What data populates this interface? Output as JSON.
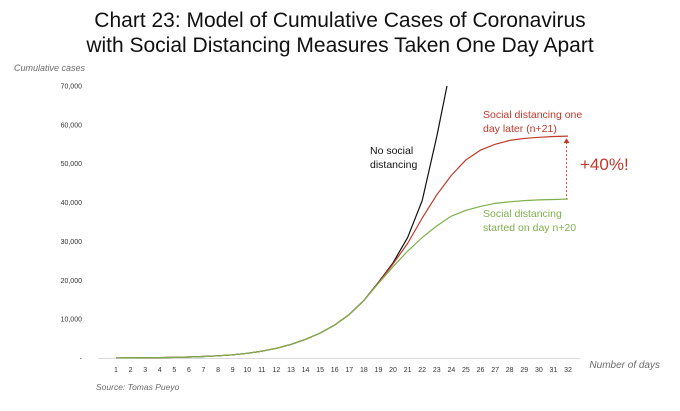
{
  "chart_data": {
    "type": "line",
    "title_line1": "Chart 23: Model of Cumulative Cases of Coronavirus",
    "title_line2": "with Social Distancing Measures Taken One Day Apart",
    "ylabel": "Cumulative cases",
    "xlabel": "Number of days",
    "source": "Source: Tomas Pueyo",
    "x": [
      1,
      2,
      3,
      4,
      5,
      6,
      7,
      8,
      9,
      10,
      11,
      12,
      13,
      14,
      15,
      16,
      17,
      18,
      19,
      20,
      21,
      22,
      23,
      24,
      25,
      26,
      27,
      28,
      29,
      30,
      31,
      32
    ],
    "xlim": [
      1,
      32
    ],
    "ylim": [
      0,
      70000
    ],
    "yticks": [
      0,
      10000,
      20000,
      30000,
      40000,
      50000,
      60000,
      70000
    ],
    "ytick_labels": [
      "-",
      "10,000",
      "20,000",
      "30,000",
      "40,000",
      "50,000",
      "60,000",
      "70,000"
    ],
    "grid": false,
    "series": [
      {
        "key": "none",
        "color": "#111111",
        "x": [
          1,
          2,
          3,
          4,
          5,
          6,
          7,
          8,
          9,
          10,
          11,
          12,
          13,
          14,
          15,
          16,
          17,
          18,
          19,
          20,
          21,
          22,
          23,
          23.7
        ],
        "values": [
          10,
          30,
          60,
          100,
          160,
          250,
          380,
          560,
          820,
          1200,
          1750,
          2500,
          3500,
          4800,
          6400,
          8500,
          11200,
          14800,
          19500,
          24500,
          31000,
          40500,
          57000,
          70000
        ]
      },
      {
        "key": "n21",
        "color": "#c0392b",
        "x": [
          1,
          2,
          3,
          4,
          5,
          6,
          7,
          8,
          9,
          10,
          11,
          12,
          13,
          14,
          15,
          16,
          17,
          18,
          19,
          20,
          21,
          22,
          23,
          24,
          25,
          26,
          27,
          28,
          29,
          30,
          31,
          32
        ],
        "values": [
          10,
          30,
          60,
          100,
          160,
          250,
          380,
          560,
          820,
          1200,
          1750,
          2500,
          3500,
          4800,
          6400,
          8500,
          11200,
          14800,
          19400,
          24200,
          29500,
          36000,
          42000,
          47000,
          51000,
          53500,
          55000,
          56000,
          56500,
          56800,
          57000,
          57100
        ]
      },
      {
        "key": "n20",
        "color": "#7fb04c",
        "x": [
          1,
          2,
          3,
          4,
          5,
          6,
          7,
          8,
          9,
          10,
          11,
          12,
          13,
          14,
          15,
          16,
          17,
          18,
          19,
          20,
          21,
          22,
          23,
          24,
          25,
          26,
          27,
          28,
          29,
          30,
          31,
          32
        ],
        "values": [
          10,
          30,
          60,
          100,
          160,
          250,
          380,
          560,
          820,
          1200,
          1750,
          2500,
          3500,
          4800,
          6400,
          8500,
          11200,
          14800,
          19200,
          23500,
          27500,
          31000,
          34000,
          36500,
          38000,
          39000,
          39800,
          40200,
          40500,
          40700,
          40800,
          40900
        ]
      }
    ],
    "annotations": [
      {
        "key": "none",
        "lines": [
          "No social",
          "distancing"
        ],
        "color": "#111111"
      },
      {
        "key": "n21",
        "lines": [
          "Social distancing one",
          "day later (n+21)"
        ],
        "color": "#c0392b"
      },
      {
        "key": "n20",
        "lines": [
          "Social distancing",
          "started on day n+20"
        ],
        "color": "#7fb04c"
      },
      {
        "key": "delta",
        "lines": [
          "+40%!"
        ],
        "color": "#c0392b"
      }
    ]
  }
}
